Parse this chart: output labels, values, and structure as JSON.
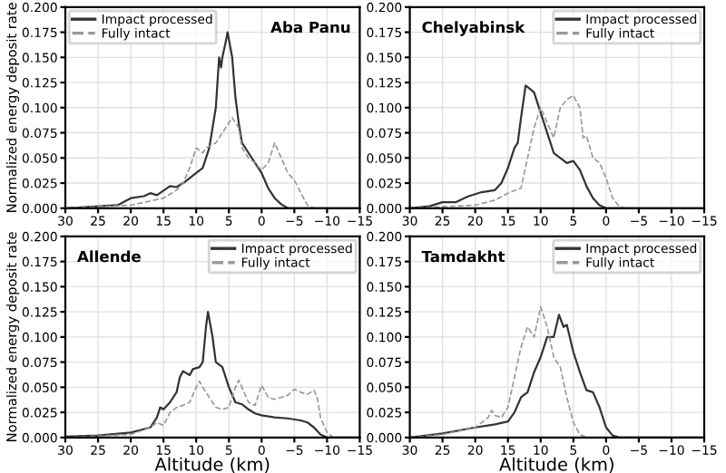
{
  "chart_data": [
    {
      "type": "line",
      "annotations": [
        "Aba Panu"
      ],
      "ylabel": "Normalized energy deposit rate",
      "xlim": [
        30,
        -15
      ],
      "xticks": [
        30,
        25,
        20,
        15,
        10,
        5,
        0,
        {
          "value": -5,
          "label": "−5"
        },
        {
          "value": -10,
          "label": "−10"
        },
        {
          "value": -15,
          "label": "−15"
        }
      ],
      "ylim": [
        0,
        0.2
      ],
      "yticks": [
        {
          "value": 0,
          "label": "0.000"
        },
        {
          "value": 0.025,
          "label": "0.025"
        },
        {
          "value": 0.05,
          "label": "0.050"
        },
        {
          "value": 0.075,
          "label": "0.075"
        },
        {
          "value": 0.1,
          "label": "0.100"
        },
        {
          "value": 0.125,
          "label": "0.125"
        },
        {
          "value": 0.15,
          "label": "0.150"
        },
        {
          "value": 0.175,
          "label": "0.175"
        },
        {
          "value": 0.2,
          "label": "0.200"
        }
      ],
      "grid": true,
      "legend": "top left",
      "series": [
        {
          "name": "Impact processed",
          "color": "#333333",
          "line_style": "solid",
          "x": [
            30,
            22,
            20,
            18,
            17,
            16,
            14,
            13,
            12,
            11,
            10,
            9,
            8,
            7,
            6.5,
            6.2,
            6,
            5.5,
            5.2,
            4.5,
            4,
            3.5,
            3,
            2,
            1,
            0,
            -1,
            -2,
            -3,
            -4,
            -15
          ],
          "values": [
            0,
            0.003,
            0.01,
            0.012,
            0.015,
            0.013,
            0.022,
            0.021,
            0.025,
            0.03,
            0.035,
            0.04,
            0.06,
            0.1,
            0.15,
            0.14,
            0.15,
            0.165,
            0.175,
            0.15,
            0.11,
            0.085,
            0.065,
            0.055,
            0.045,
            0.035,
            0.02,
            0.01,
            0.004,
            0,
            0
          ]
        },
        {
          "name": "Fully intact",
          "color": "#999999",
          "line_style": "dashed",
          "x": [
            30,
            20,
            15,
            13,
            12,
            11,
            10,
            9,
            8.5,
            7,
            6,
            5,
            4.5,
            3.5,
            3,
            2,
            1,
            0,
            -1,
            -2,
            -3,
            -4,
            -5,
            -6,
            -7,
            -8,
            -15
          ],
          "values": [
            0,
            0.003,
            0.01,
            0.018,
            0.025,
            0.04,
            0.06,
            0.055,
            0.06,
            0.065,
            0.075,
            0.085,
            0.09,
            0.08,
            0.06,
            0.05,
            0.045,
            0.038,
            0.045,
            0.065,
            0.05,
            0.035,
            0.028,
            0.015,
            0.003,
            0,
            0
          ]
        }
      ]
    },
    {
      "type": "line",
      "annotations": [
        "Chelyabinsk"
      ],
      "xlim": [
        30,
        -15
      ],
      "xticks": [
        30,
        25,
        20,
        15,
        10,
        5,
        0,
        {
          "value": -5,
          "label": "−5"
        },
        {
          "value": -10,
          "label": "−10"
        },
        {
          "value": -15,
          "label": "−15"
        }
      ],
      "ylim": [
        0,
        0.2
      ],
      "yticks": [
        {
          "value": 0,
          "label": "0.000"
        },
        {
          "value": 0.025,
          "label": "0.025"
        },
        {
          "value": 0.05,
          "label": "0.050"
        },
        {
          "value": 0.075,
          "label": "0.075"
        },
        {
          "value": 0.1,
          "label": "0.100"
        },
        {
          "value": 0.125,
          "label": "0.125"
        },
        {
          "value": 0.15,
          "label": "0.150"
        },
        {
          "value": 0.175,
          "label": "0.175"
        },
        {
          "value": 0.2,
          "label": "0.200"
        }
      ],
      "grid": true,
      "legend": "top right",
      "series": [
        {
          "name": "Impact processed",
          "color": "#333333",
          "line_style": "solid",
          "x": [
            30,
            27,
            25,
            23,
            21,
            19,
            17,
            16,
            15,
            14,
            13.5,
            13,
            12.3,
            11.5,
            11,
            10,
            9,
            8,
            7,
            6,
            5,
            4,
            3,
            2,
            1,
            0,
            -15
          ],
          "values": [
            0,
            0.002,
            0.006,
            0.006,
            0.012,
            0.016,
            0.018,
            0.025,
            0.04,
            0.06,
            0.065,
            0.09,
            0.122,
            0.118,
            0.115,
            0.095,
            0.075,
            0.055,
            0.05,
            0.045,
            0.047,
            0.038,
            0.022,
            0.01,
            0.003,
            0,
            0
          ]
        },
        {
          "name": "Fully intact",
          "color": "#999999",
          "line_style": "dashed",
          "x": [
            30,
            20,
            17,
            15,
            13,
            12,
            11,
            10,
            9,
            8,
            7,
            6,
            5,
            4,
            3.5,
            3,
            2,
            1,
            0,
            -1,
            -2,
            -3,
            -15
          ],
          "values": [
            0,
            0.003,
            0.008,
            0.015,
            0.02,
            0.05,
            0.08,
            0.1,
            0.085,
            0.07,
            0.1,
            0.108,
            0.112,
            0.1,
            0.07,
            0.072,
            0.05,
            0.045,
            0.03,
            0.01,
            0.002,
            0,
            0
          ]
        }
      ]
    },
    {
      "type": "line",
      "annotations": [
        "Allende"
      ],
      "ylabel": "Normalized energy deposit rate",
      "xlabel": "Altitude (km)",
      "xlim": [
        30,
        -15
      ],
      "xticks": [
        30,
        25,
        20,
        15,
        10,
        5,
        0,
        {
          "value": -5,
          "label": "−5"
        },
        {
          "value": -10,
          "label": "−10"
        },
        {
          "value": -15,
          "label": "−15"
        }
      ],
      "ylim": [
        0,
        0.2
      ],
      "yticks": [
        {
          "value": 0,
          "label": "0.000"
        },
        {
          "value": 0.025,
          "label": "0.025"
        },
        {
          "value": 0.05,
          "label": "0.050"
        },
        {
          "value": 0.075,
          "label": "0.075"
        },
        {
          "value": 0.1,
          "label": "0.100"
        },
        {
          "value": 0.125,
          "label": "0.125"
        },
        {
          "value": 0.15,
          "label": "0.150"
        },
        {
          "value": 0.175,
          "label": "0.175"
        },
        {
          "value": 0.2,
          "label": "0.200"
        }
      ],
      "grid": true,
      "legend": "top right",
      "series": [
        {
          "name": "Impact processed",
          "color": "#333333",
          "line_style": "solid",
          "x": [
            30,
            25,
            20,
            17,
            16,
            15.5,
            15,
            14,
            13,
            12.5,
            12,
            11,
            10.5,
            9.5,
            9,
            8.5,
            8.2,
            7.5,
            7,
            6,
            5,
            4,
            3,
            2,
            1,
            0,
            -2,
            -4,
            -6,
            -7,
            -8,
            -9,
            -10,
            -15
          ],
          "values": [
            0.001,
            0.002,
            0.005,
            0.01,
            0.02,
            0.03,
            0.028,
            0.035,
            0.045,
            0.06,
            0.066,
            0.062,
            0.068,
            0.07,
            0.075,
            0.11,
            0.125,
            0.1,
            0.075,
            0.07,
            0.05,
            0.035,
            0.033,
            0.028,
            0.024,
            0.022,
            0.02,
            0.019,
            0.017,
            0.015,
            0.01,
            0.003,
            0,
            0
          ]
        },
        {
          "name": "Fully intact",
          "color": "#999999",
          "line_style": "dashed",
          "x": [
            30,
            20,
            17,
            16,
            15,
            14,
            13,
            12,
            11,
            10,
            9.5,
            9,
            8,
            7,
            6,
            5,
            4,
            3.5,
            3,
            2,
            1,
            0,
            -1,
            -2,
            -3,
            -4,
            -5,
            -6,
            -7,
            -8,
            -8.5,
            -9,
            -10,
            -11,
            -15
          ],
          "values": [
            0,
            0.003,
            0.01,
            0.015,
            0.012,
            0.025,
            0.03,
            0.032,
            0.035,
            0.05,
            0.056,
            0.05,
            0.04,
            0.03,
            0.028,
            0.03,
            0.05,
            0.057,
            0.05,
            0.035,
            0.032,
            0.052,
            0.04,
            0.038,
            0.04,
            0.042,
            0.048,
            0.045,
            0.043,
            0.047,
            0.04,
            0.02,
            0.005,
            0,
            0
          ]
        }
      ]
    },
    {
      "type": "line",
      "annotations": [
        "Tamdakht"
      ],
      "xlabel": "Altitude (km)",
      "xlim": [
        30,
        -15
      ],
      "xticks": [
        30,
        25,
        20,
        15,
        10,
        5,
        0,
        {
          "value": -5,
          "label": "−5"
        },
        {
          "value": -10,
          "label": "−10"
        },
        {
          "value": -15,
          "label": "−15"
        }
      ],
      "ylim": [
        0,
        0.2
      ],
      "yticks": [
        {
          "value": 0,
          "label": "0.000"
        },
        {
          "value": 0.025,
          "label": "0.025"
        },
        {
          "value": 0.05,
          "label": "0.050"
        },
        {
          "value": 0.075,
          "label": "0.075"
        },
        {
          "value": 0.1,
          "label": "0.100"
        },
        {
          "value": 0.125,
          "label": "0.125"
        },
        {
          "value": 0.15,
          "label": "0.150"
        },
        {
          "value": 0.175,
          "label": "0.175"
        },
        {
          "value": 0.2,
          "label": "0.200"
        }
      ],
      "grid": true,
      "legend": "top right",
      "series": [
        {
          "name": "Impact processed",
          "color": "#333333",
          "line_style": "solid",
          "x": [
            30,
            25,
            20,
            17,
            15,
            14,
            13,
            12,
            11,
            10,
            9,
            8,
            7.2,
            6.5,
            6,
            5,
            4,
            3,
            2,
            1,
            0,
            -1,
            -2,
            -15
          ],
          "values": [
            0,
            0.004,
            0.01,
            0.013,
            0.016,
            0.025,
            0.04,
            0.045,
            0.065,
            0.08,
            0.1,
            0.1,
            0.122,
            0.11,
            0.112,
            0.085,
            0.065,
            0.047,
            0.045,
            0.03,
            0.01,
            0.002,
            0,
            0
          ]
        },
        {
          "name": "Fully intact",
          "color": "#999999",
          "line_style": "dashed",
          "x": [
            30,
            25,
            20,
            18,
            17.5,
            17,
            16,
            15,
            14,
            13,
            12,
            11.5,
            11,
            10,
            9,
            8,
            7,
            6,
            5,
            4,
            3,
            -15
          ],
          "values": [
            0,
            0.003,
            0.01,
            0.02,
            0.027,
            0.022,
            0.02,
            0.03,
            0.06,
            0.09,
            0.11,
            0.105,
            0.1,
            0.13,
            0.11,
            0.08,
            0.07,
            0.04,
            0.015,
            0.003,
            0,
            0
          ]
        }
      ]
    }
  ]
}
